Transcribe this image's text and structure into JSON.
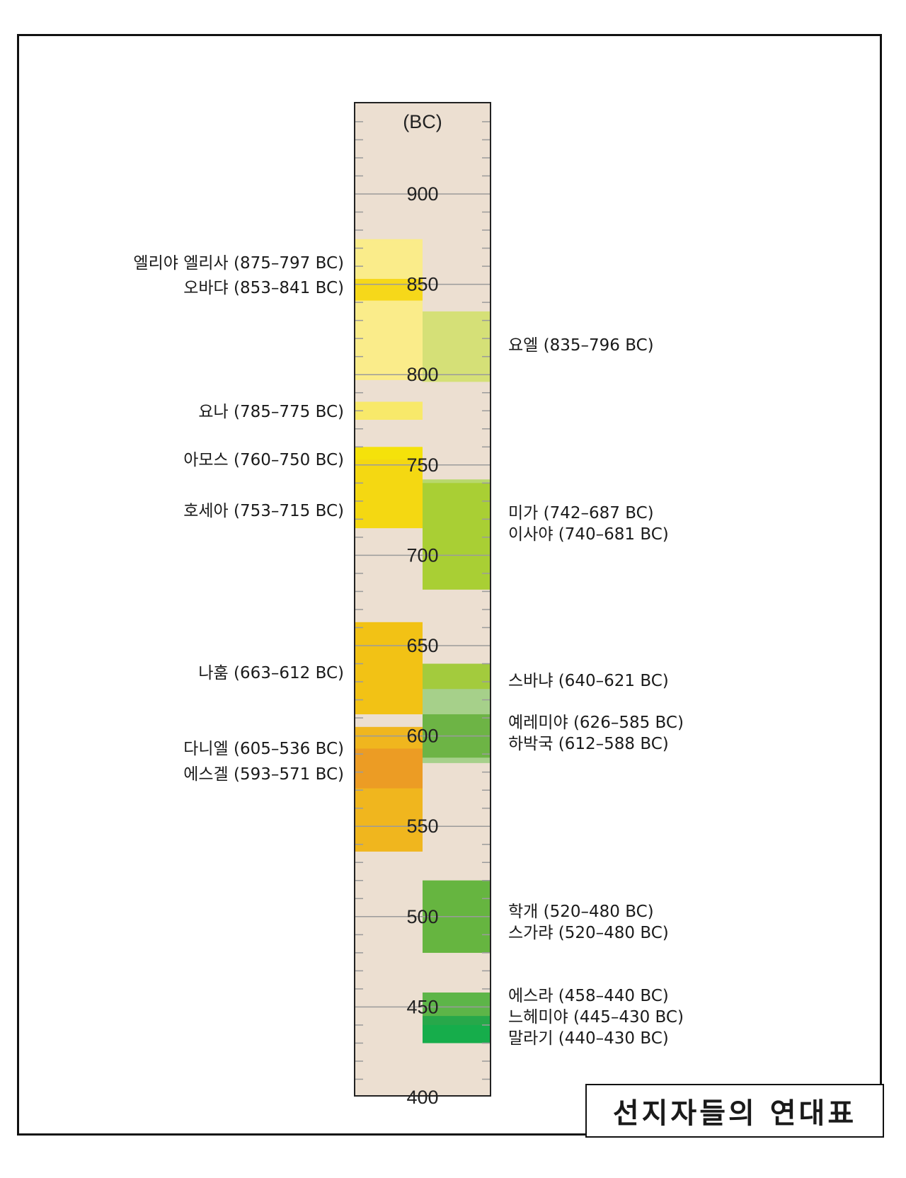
{
  "chart_data": {
    "type": "bar",
    "title": "선지자들의 연대표",
    "unit_label": "(BC)",
    "ylim": [
      400,
      950
    ],
    "tick_labels": [
      "900",
      "850",
      "800",
      "750",
      "700",
      "650",
      "600",
      "550",
      "500",
      "450",
      "400"
    ],
    "colors": {
      "background_column": "#ecdfd1",
      "tick": "#9b9b9b",
      "border": "#222222"
    },
    "left_prophets": [
      {
        "label": "엘리야 엘리사 (875–797 BC)",
        "start": 875,
        "end": 797,
        "color": "#faec8a"
      },
      {
        "label": "오바댜 (853–841 BC)",
        "start": 853,
        "end": 841,
        "color": "#f6d81a"
      },
      {
        "label": "요나 (785–775 BC)",
        "start": 785,
        "end": 775,
        "color": "#f8e96a"
      },
      {
        "label": "아모스 (760–750 BC)",
        "start": 760,
        "end": 750,
        "color": "#f5e20a"
      },
      {
        "label": "호세아 (753–715 BC)",
        "start": 753,
        "end": 715,
        "color": "#f4d812"
      },
      {
        "label": "나훔 (663–612 BC)",
        "start": 663,
        "end": 612,
        "color": "#f2c215"
      },
      {
        "label": "다니엘 (605–536 BC)",
        "start": 605,
        "end": 536,
        "color": "#f0b61e"
      },
      {
        "label": "에스겔 (593–571 BC)",
        "start": 593,
        "end": 571,
        "color": "#ec9c24"
      }
    ],
    "right_prophets": [
      {
        "label": "요엘 (835–796 BC)",
        "start": 835,
        "end": 796,
        "color": "#d5e077"
      },
      {
        "label": "미가 (742–687 BC)",
        "start": 742,
        "end": 687,
        "color": "#b8d86c"
      },
      {
        "label": "이사야 (740–681 BC)",
        "start": 740,
        "end": 681,
        "color": "#a9cf34"
      },
      {
        "label": "스바냐 (640–621 BC)",
        "start": 640,
        "end": 621,
        "color": "#a3cb3d"
      },
      {
        "label": "예레미야 (626–585 BC)",
        "start": 626,
        "end": 585,
        "color": "#a6d08a"
      },
      {
        "label": "하박국 (612–588 BC)",
        "start": 612,
        "end": 588,
        "color": "#6db445"
      },
      {
        "label": "학개 (520–480 BC)",
        "start": 520,
        "end": 480,
        "color": "#6cb844"
      },
      {
        "label": "스가랴 (520–480 BC)",
        "start": 520,
        "end": 480,
        "color": "#66b540"
      },
      {
        "label": "에스라 (458–440 BC)",
        "start": 458,
        "end": 440,
        "color": "#5db548"
      },
      {
        "label": "느헤미야 (445–430 BC)",
        "start": 445,
        "end": 430,
        "color": "#27a84a"
      },
      {
        "label": "말라기 (440–430 BC)",
        "start": 440,
        "end": 430,
        "color": "#16ad4b"
      }
    ]
  }
}
